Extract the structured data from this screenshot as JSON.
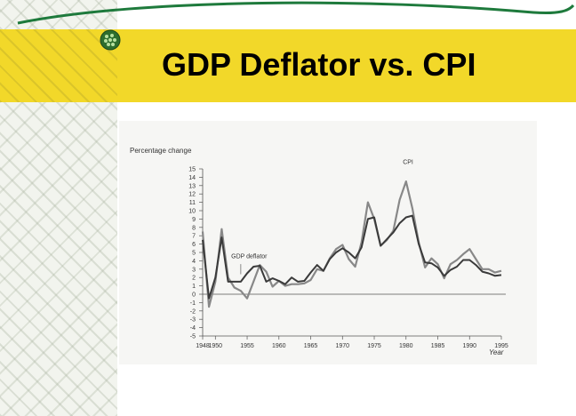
{
  "slide": {
    "title": "GDP Deflator vs. CPI"
  },
  "chart_data": {
    "type": "line",
    "ylabel": "Percentage change",
    "xlabel": "Year",
    "ylim": [
      -5,
      15
    ],
    "xlim": [
      1948,
      1995
    ],
    "yticks": [
      "-5",
      "-4",
      "-3",
      "-2",
      "-1",
      "0",
      "1",
      "2",
      "3",
      "4",
      "5",
      "6",
      "7",
      "8",
      "9",
      "10",
      "11",
      "12",
      "13",
      "14",
      "15"
    ],
    "xticks": [
      "1948",
      "1950",
      "1955",
      "1960",
      "1965",
      "1970",
      "1975",
      "1980",
      "1985",
      "1990",
      "1995"
    ],
    "series": [
      {
        "name": "CPI",
        "color": "#888888",
        "values": [
          [
            1948,
            7.5
          ],
          [
            1949,
            -1.5
          ],
          [
            1950,
            1.5
          ],
          [
            1951,
            7.8
          ],
          [
            1952,
            2.0
          ],
          [
            1953,
            0.8
          ],
          [
            1954,
            0.4
          ],
          [
            1955,
            -0.5
          ],
          [
            1956,
            1.5
          ],
          [
            1957,
            3.5
          ],
          [
            1958,
            2.7
          ],
          [
            1959,
            0.9
          ],
          [
            1960,
            1.6
          ],
          [
            1961,
            1.0
          ],
          [
            1962,
            1.2
          ],
          [
            1963,
            1.2
          ],
          [
            1964,
            1.3
          ],
          [
            1965,
            1.7
          ],
          [
            1966,
            3.0
          ],
          [
            1967,
            2.8
          ],
          [
            1968,
            4.3
          ],
          [
            1969,
            5.4
          ],
          [
            1970,
            5.9
          ],
          [
            1971,
            4.2
          ],
          [
            1972,
            3.3
          ],
          [
            1973,
            6.2
          ],
          [
            1974,
            11.0
          ],
          [
            1975,
            9.0
          ],
          [
            1976,
            5.8
          ],
          [
            1977,
            6.5
          ],
          [
            1978,
            7.6
          ],
          [
            1979,
            11.3
          ],
          [
            1980,
            13.5
          ],
          [
            1981,
            10.3
          ],
          [
            1982,
            6.2
          ],
          [
            1983,
            3.2
          ],
          [
            1984,
            4.3
          ],
          [
            1985,
            3.6
          ],
          [
            1986,
            1.9
          ],
          [
            1987,
            3.6
          ],
          [
            1988,
            4.1
          ],
          [
            1989,
            4.8
          ],
          [
            1990,
            5.4
          ],
          [
            1991,
            4.2
          ],
          [
            1992,
            3.0
          ],
          [
            1993,
            3.0
          ],
          [
            1994,
            2.6
          ],
          [
            1995,
            2.8
          ]
        ]
      },
      {
        "name": "GDP deflator",
        "color": "#3a3a3a",
        "values": [
          [
            1948,
            6.5
          ],
          [
            1949,
            -0.5
          ],
          [
            1950,
            2.0
          ],
          [
            1951,
            6.8
          ],
          [
            1952,
            1.5
          ],
          [
            1953,
            1.5
          ],
          [
            1954,
            1.5
          ],
          [
            1955,
            2.5
          ],
          [
            1956,
            3.3
          ],
          [
            1957,
            3.4
          ],
          [
            1958,
            1.5
          ],
          [
            1959,
            1.9
          ],
          [
            1960,
            1.6
          ],
          [
            1961,
            1.2
          ],
          [
            1962,
            2.0
          ],
          [
            1963,
            1.5
          ],
          [
            1964,
            1.6
          ],
          [
            1965,
            2.6
          ],
          [
            1966,
            3.5
          ],
          [
            1967,
            2.8
          ],
          [
            1968,
            4.2
          ],
          [
            1969,
            5.0
          ],
          [
            1970,
            5.5
          ],
          [
            1971,
            5.0
          ],
          [
            1972,
            4.3
          ],
          [
            1973,
            5.6
          ],
          [
            1974,
            9.0
          ],
          [
            1975,
            9.2
          ],
          [
            1976,
            5.8
          ],
          [
            1977,
            6.6
          ],
          [
            1978,
            7.4
          ],
          [
            1979,
            8.5
          ],
          [
            1980,
            9.2
          ],
          [
            1981,
            9.4
          ],
          [
            1982,
            6.0
          ],
          [
            1983,
            3.8
          ],
          [
            1984,
            3.7
          ],
          [
            1985,
            3.2
          ],
          [
            1986,
            2.2
          ],
          [
            1987,
            2.9
          ],
          [
            1988,
            3.3
          ],
          [
            1989,
            4.1
          ],
          [
            1990,
            4.1
          ],
          [
            1991,
            3.5
          ],
          [
            1992,
            2.7
          ],
          [
            1993,
            2.5
          ],
          [
            1994,
            2.2
          ],
          [
            1995,
            2.3
          ]
        ]
      }
    ],
    "grid": false,
    "zero_line": true
  }
}
